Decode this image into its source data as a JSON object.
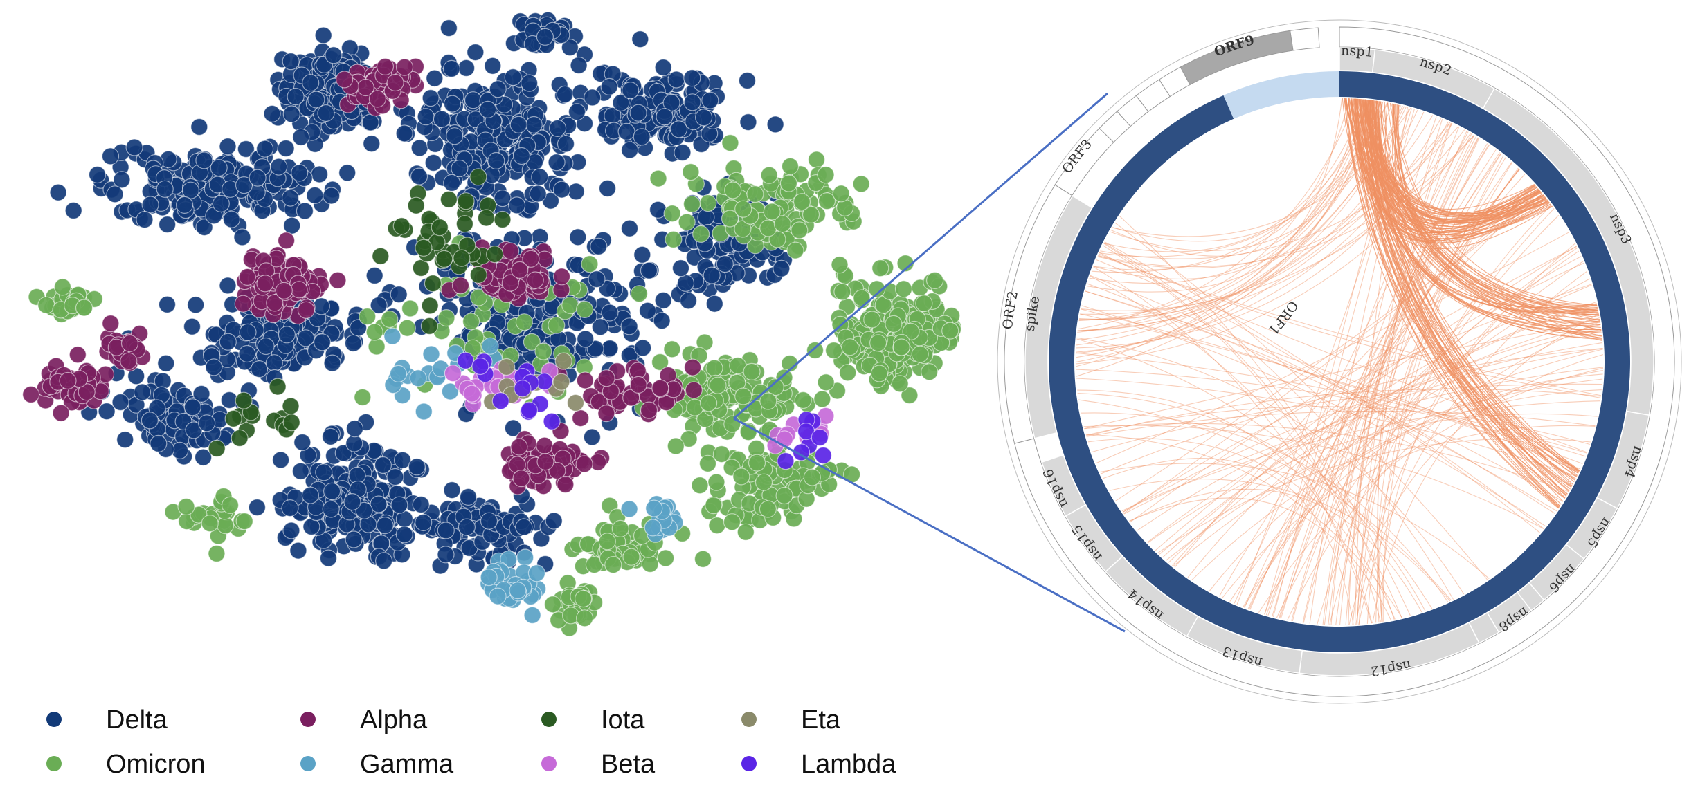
{
  "chart_data": [
    {
      "type": "scatter",
      "legend_position": "bottom",
      "legend": [
        {
          "name": "Delta",
          "color": "#123a78"
        },
        {
          "name": "Omicron",
          "color": "#6aad55"
        },
        {
          "name": "Alpha",
          "color": "#7a1f5f"
        },
        {
          "name": "Gamma",
          "color": "#5aa2c6"
        },
        {
          "name": "Iota",
          "color": "#2a5a22"
        },
        {
          "name": "Beta",
          "color": "#c66ad8"
        },
        {
          "name": "Eta",
          "color": "#8a8a6a"
        },
        {
          "name": "Lambda",
          "color": "#5a24e6"
        }
      ],
      "series_colors": {
        "Delta": "#123a78",
        "Omicron": "#6aad55",
        "Alpha": "#7a1f5f",
        "Gamma": "#5aa2c6",
        "Iota": "#2a5a22",
        "Beta": "#c66ad8",
        "Eta": "#8a8a6a",
        "Lambda": "#5a24e6"
      },
      "clusters": [
        {
          "series": "Delta",
          "cx": 0.33,
          "cy": 0.12,
          "sx": 0.05,
          "sy": 0.06,
          "n": 140
        },
        {
          "series": "Delta",
          "cx": 0.5,
          "cy": 0.19,
          "sx": 0.08,
          "sy": 0.09,
          "n": 260
        },
        {
          "series": "Delta",
          "cx": 0.68,
          "cy": 0.15,
          "sx": 0.07,
          "sy": 0.05,
          "n": 150
        },
        {
          "series": "Delta",
          "cx": 0.55,
          "cy": 0.03,
          "sx": 0.03,
          "sy": 0.02,
          "n": 40
        },
        {
          "series": "Delta",
          "cx": 0.2,
          "cy": 0.27,
          "sx": 0.1,
          "sy": 0.06,
          "n": 200
        },
        {
          "series": "Delta",
          "cx": 0.35,
          "cy": 0.75,
          "sx": 0.06,
          "sy": 0.08,
          "n": 200
        },
        {
          "series": "Delta",
          "cx": 0.28,
          "cy": 0.5,
          "sx": 0.08,
          "sy": 0.05,
          "n": 140
        },
        {
          "series": "Delta",
          "cx": 0.55,
          "cy": 0.45,
          "sx": 0.12,
          "sy": 0.13,
          "n": 230
        },
        {
          "series": "Delta",
          "cx": 0.75,
          "cy": 0.35,
          "sx": 0.05,
          "sy": 0.07,
          "n": 110
        },
        {
          "series": "Delta",
          "cx": 0.15,
          "cy": 0.62,
          "sx": 0.06,
          "sy": 0.06,
          "n": 80
        },
        {
          "series": "Delta",
          "cx": 0.48,
          "cy": 0.8,
          "sx": 0.07,
          "sy": 0.05,
          "n": 90
        },
        {
          "series": "Omicron",
          "cx": 0.93,
          "cy": 0.5,
          "sx": 0.06,
          "sy": 0.08,
          "n": 200
        },
        {
          "series": "Omicron",
          "cx": 0.75,
          "cy": 0.6,
          "sx": 0.07,
          "sy": 0.06,
          "n": 120
        },
        {
          "series": "Omicron",
          "cx": 0.8,
          "cy": 0.3,
          "sx": 0.08,
          "sy": 0.06,
          "n": 100
        },
        {
          "series": "Omicron",
          "cx": 0.79,
          "cy": 0.73,
          "sx": 0.06,
          "sy": 0.06,
          "n": 90
        },
        {
          "series": "Omicron",
          "cx": 0.63,
          "cy": 0.83,
          "sx": 0.04,
          "sy": 0.04,
          "n": 60
        },
        {
          "series": "Omicron",
          "cx": 0.05,
          "cy": 0.45,
          "sx": 0.03,
          "sy": 0.02,
          "n": 30
        },
        {
          "series": "Omicron",
          "cx": 0.59,
          "cy": 0.92,
          "sx": 0.02,
          "sy": 0.03,
          "n": 25
        },
        {
          "series": "Omicron",
          "cx": 0.2,
          "cy": 0.78,
          "sx": 0.04,
          "sy": 0.03,
          "n": 25
        },
        {
          "series": "Omicron",
          "cx": 0.5,
          "cy": 0.48,
          "sx": 0.12,
          "sy": 0.1,
          "n": 60
        },
        {
          "series": "Alpha",
          "cx": 0.38,
          "cy": 0.11,
          "sx": 0.03,
          "sy": 0.03,
          "n": 60
        },
        {
          "series": "Alpha",
          "cx": 0.28,
          "cy": 0.42,
          "sx": 0.04,
          "sy": 0.04,
          "n": 110
        },
        {
          "series": "Alpha",
          "cx": 0.05,
          "cy": 0.58,
          "sx": 0.03,
          "sy": 0.03,
          "n": 45
        },
        {
          "series": "Alpha",
          "cx": 0.52,
          "cy": 0.41,
          "sx": 0.04,
          "sy": 0.04,
          "n": 70
        },
        {
          "series": "Alpha",
          "cx": 0.56,
          "cy": 0.7,
          "sx": 0.04,
          "sy": 0.03,
          "n": 70
        },
        {
          "series": "Alpha",
          "cx": 0.65,
          "cy": 0.58,
          "sx": 0.05,
          "sy": 0.04,
          "n": 50
        },
        {
          "series": "Alpha",
          "cx": 0.11,
          "cy": 0.52,
          "sx": 0.02,
          "sy": 0.03,
          "n": 25
        },
        {
          "series": "Gamma",
          "cx": 0.53,
          "cy": 0.89,
          "sx": 0.03,
          "sy": 0.03,
          "n": 35
        },
        {
          "series": "Gamma",
          "cx": 0.68,
          "cy": 0.78,
          "sx": 0.03,
          "sy": 0.02,
          "n": 15
        },
        {
          "series": "Gamma",
          "cx": 0.45,
          "cy": 0.55,
          "sx": 0.06,
          "sy": 0.05,
          "n": 20
        },
        {
          "series": "Iota",
          "cx": 0.45,
          "cy": 0.34,
          "sx": 0.07,
          "sy": 0.08,
          "n": 40
        },
        {
          "series": "Iota",
          "cx": 0.25,
          "cy": 0.62,
          "sx": 0.06,
          "sy": 0.05,
          "n": 15
        },
        {
          "series": "Beta",
          "cx": 0.5,
          "cy": 0.57,
          "sx": 0.05,
          "sy": 0.04,
          "n": 22
        },
        {
          "series": "Beta",
          "cx": 0.83,
          "cy": 0.65,
          "sx": 0.03,
          "sy": 0.03,
          "n": 12
        },
        {
          "series": "Eta",
          "cx": 0.55,
          "cy": 0.58,
          "sx": 0.06,
          "sy": 0.04,
          "n": 10
        },
        {
          "series": "Lambda",
          "cx": 0.52,
          "cy": 0.58,
          "sx": 0.06,
          "sy": 0.05,
          "n": 14
        },
        {
          "series": "Lambda",
          "cx": 0.83,
          "cy": 0.66,
          "sx": 0.03,
          "sy": 0.03,
          "n": 8
        }
      ]
    },
    {
      "type": "chord",
      "genome_length": 29903,
      "ring_color": "#2e4f82",
      "chord_color": "#ef9061",
      "segment_color": "#d9d9d9",
      "highlight_color": "#c5daf0",
      "orf9_color": "#a8a8a8",
      "segments": [
        {
          "name": "nsp1",
          "start": 0,
          "end": 540
        },
        {
          "name": "nsp2",
          "start": 540,
          "end": 2454
        },
        {
          "name": "nsp3",
          "start": 2454,
          "end": 8289
        },
        {
          "name": "nsp4",
          "start": 8289,
          "end": 9789
        },
        {
          "name": "nsp5",
          "start": 9789,
          "end": 10707
        },
        {
          "name": "nsp6",
          "start": 10707,
          "end": 11577
        },
        {
          "name": "",
          "start": 11577,
          "end": 11826
        },
        {
          "name": "nsp8",
          "start": 11826,
          "end": 12420
        },
        {
          "name": "",
          "start": 12420,
          "end": 12759
        },
        {
          "name": "nsp12",
          "start": 12759,
          "end": 15561
        },
        {
          "name": "nsp13",
          "start": 15561,
          "end": 17364
        },
        {
          "name": "nsp14",
          "start": 17364,
          "end": 18945
        },
        {
          "name": "nsp15",
          "start": 18945,
          "end": 19983
        },
        {
          "name": "nsp16",
          "start": 19983,
          "end": 20877
        },
        {
          "name": "spike",
          "start": 21254,
          "end": 25077
        }
      ],
      "orfs": [
        {
          "name": "ORF1",
          "start": 0,
          "end": 21254
        },
        {
          "name": "ORF2",
          "start": 21254,
          "end": 25077
        },
        {
          "name": "ORF3",
          "start": 25077,
          "end": 26100
        },
        {
          "name": "",
          "start": 26100,
          "end": 26450
        },
        {
          "name": "",
          "start": 26450,
          "end": 26800
        },
        {
          "name": "",
          "start": 26800,
          "end": 27200
        },
        {
          "name": "",
          "start": 27200,
          "end": 27550
        },
        {
          "name": "ORF9",
          "start": 27550,
          "end": 29200
        },
        {
          "name": "",
          "start": 29200,
          "end": 29600
        }
      ],
      "highlight_range": [
        27950,
        29903
      ],
      "chord_groups": [
        {
          "from": [
            29950,
            30600
          ],
          "to": [
            3950,
            4500
          ],
          "n": 60
        },
        {
          "from": [
            30300,
            31000
          ],
          "to": [
            6400,
            7100
          ],
          "n": 45
        },
        {
          "from": [
            29950,
            30500
          ],
          "to": [
            9500,
            10300
          ],
          "n": 40
        },
        {
          "from": [
            31000,
            33500
          ],
          "to": [
            14000,
            17000
          ],
          "n": 35
        },
        {
          "from": [
            29900,
            32500
          ],
          "to": [
            22000,
            25000
          ],
          "n": 35
        },
        {
          "from": [
            3500,
            8000
          ],
          "to": [
            14000,
            20000
          ],
          "n": 30
        },
        {
          "from": [
            8000,
            11000
          ],
          "to": [
            21000,
            25000
          ],
          "n": 20
        },
        {
          "from": [
            12000,
            15000
          ],
          "to": [
            19000,
            25500
          ],
          "n": 20
        },
        {
          "from": [
            5000,
            9000
          ],
          "to": [
            15000,
            21500
          ],
          "n": 15
        }
      ]
    }
  ]
}
